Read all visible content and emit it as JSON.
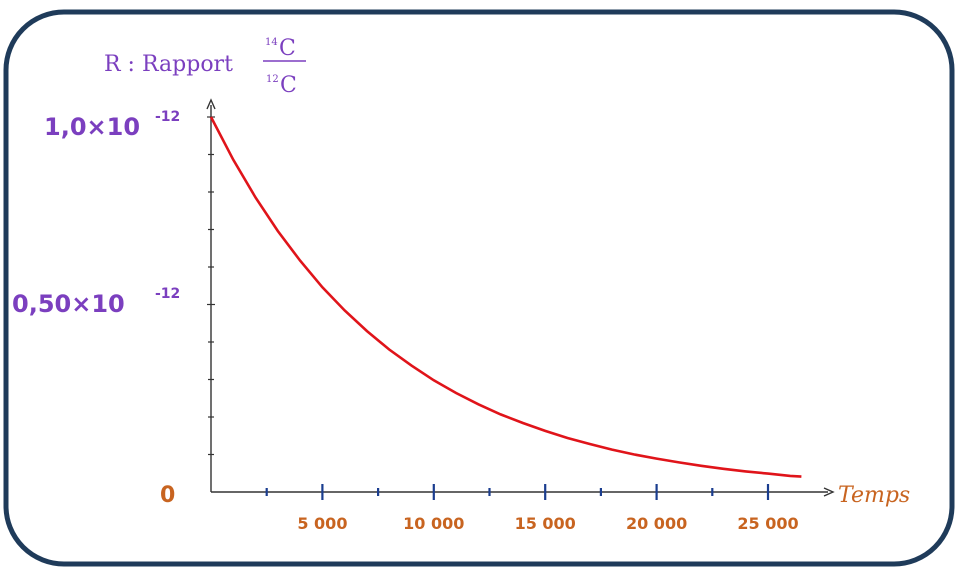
{
  "chart_data": {
    "type": "line",
    "y_title": {
      "prefix": "R : Rapport",
      "numerator_mass": "14",
      "numerator_element": "C",
      "denominator_mass": "12",
      "denominator_element": "C"
    },
    "xlabel": "Temps",
    "x_tick_labels": [
      "5 000",
      "10 000",
      "15 000",
      "20 000",
      "25 000"
    ],
    "x_ticks_major": [
      5000,
      10000,
      15000,
      20000,
      25000
    ],
    "x_ticks_minor": [
      2500,
      7500,
      12500,
      17500,
      22500
    ],
    "xlim": [
      0,
      28000
    ],
    "y_tick_labels": [
      {
        "mantissa": "1,0×10",
        "exponent": "-12",
        "value": 1.0
      },
      {
        "mantissa": "0,50×10",
        "exponent": "-12",
        "value": 0.5
      }
    ],
    "y_origin_label": "0",
    "y_minor_ticks": [
      0.1,
      0.2,
      0.3,
      0.4,
      0.6,
      0.7,
      0.8,
      0.9
    ],
    "ylim": [
      0,
      1.05
    ],
    "series": [
      {
        "color": "#e0141a",
        "x": [
          0,
          1000,
          2000,
          3000,
          4000,
          5000,
          6000,
          7000,
          8000,
          9000,
          10000,
          11000,
          12000,
          13000,
          14000,
          15000,
          16000,
          17000,
          18000,
          19000,
          20000,
          21000,
          22000,
          23000,
          24000,
          25000,
          26000,
          26500
        ],
        "y": [
          1.0,
          0.886,
          0.785,
          0.696,
          0.617,
          0.546,
          0.484,
          0.429,
          0.38,
          0.337,
          0.298,
          0.264,
          0.234,
          0.207,
          0.184,
          0.163,
          0.144,
          0.128,
          0.113,
          0.1,
          0.089,
          0.079,
          0.07,
          0.062,
          0.055,
          0.049,
          0.043,
          0.041
        ]
      }
    ]
  }
}
